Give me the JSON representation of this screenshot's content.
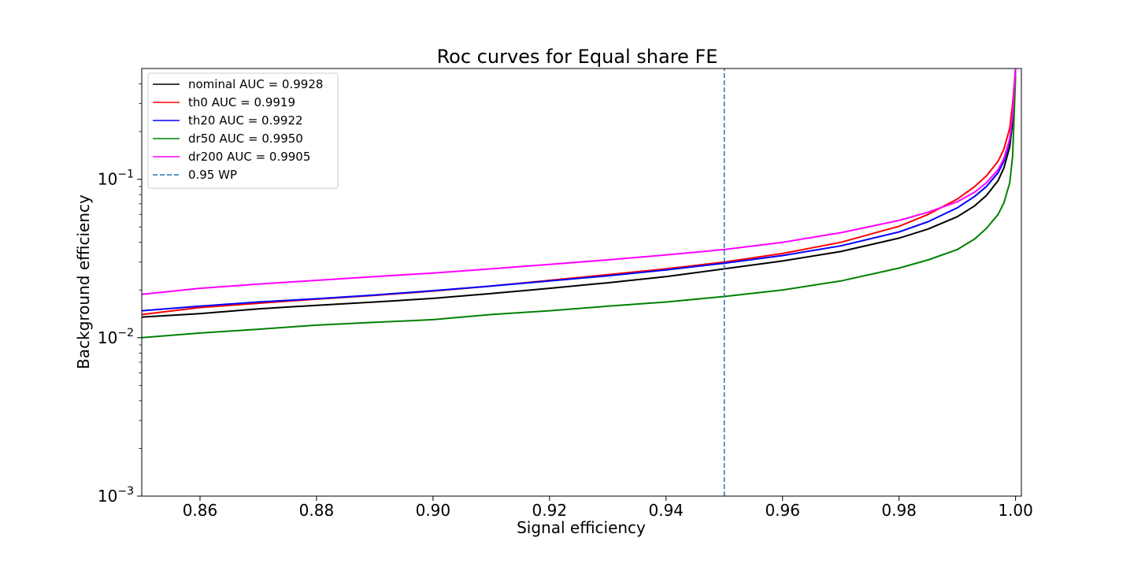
{
  "chart_data": {
    "type": "line",
    "title": "Roc curves for Equal share FE",
    "xlabel": "Signal efficiency",
    "ylabel": "Background efficiency",
    "xlim": [
      0.85,
      1.001
    ],
    "ylim": [
      0.001,
      0.5
    ],
    "yscale": "log",
    "grid": false,
    "legend_position": "top-left",
    "x_ticks": [
      {
        "value": 0.86,
        "label": "0.86"
      },
      {
        "value": 0.88,
        "label": "0.88"
      },
      {
        "value": 0.9,
        "label": "0.90"
      },
      {
        "value": 0.92,
        "label": "0.92"
      },
      {
        "value": 0.94,
        "label": "0.94"
      },
      {
        "value": 0.96,
        "label": "0.96"
      },
      {
        "value": 0.98,
        "label": "0.98"
      },
      {
        "value": 1.0,
        "label": "1.00"
      }
    ],
    "y_ticks": [
      {
        "value": 0.001,
        "base": "10",
        "exp": "−3"
      },
      {
        "value": 0.01,
        "base": "10",
        "exp": "−2"
      },
      {
        "value": 0.1,
        "base": "10",
        "exp": "−1"
      }
    ],
    "series": [
      {
        "name": "nominal AUC = 0.9928",
        "color": "#000000",
        "style": "solid",
        "x": [
          0.85,
          0.86,
          0.87,
          0.88,
          0.89,
          0.9,
          0.91,
          0.92,
          0.93,
          0.94,
          0.95,
          0.96,
          0.97,
          0.98,
          0.985,
          0.99,
          0.993,
          0.995,
          0.997,
          0.998,
          0.999,
          0.9995,
          1.0
        ],
        "y": [
          0.0135,
          0.0142,
          0.0152,
          0.016,
          0.0168,
          0.0177,
          0.019,
          0.0205,
          0.0222,
          0.0243,
          0.0272,
          0.0305,
          0.035,
          0.0425,
          0.0485,
          0.058,
          0.068,
          0.079,
          0.098,
          0.118,
          0.16,
          0.23,
          0.5
        ]
      },
      {
        "name": "th0 AUC = 0.9919",
        "color": "#ff0000",
        "style": "solid",
        "x": [
          0.85,
          0.86,
          0.87,
          0.88,
          0.89,
          0.9,
          0.91,
          0.92,
          0.93,
          0.94,
          0.95,
          0.96,
          0.97,
          0.98,
          0.985,
          0.99,
          0.993,
          0.995,
          0.997,
          0.998,
          0.999,
          0.9995,
          1.0
        ],
        "y": [
          0.014,
          0.0155,
          0.0165,
          0.0175,
          0.0185,
          0.0197,
          0.0212,
          0.023,
          0.025,
          0.0272,
          0.03,
          0.034,
          0.04,
          0.0505,
          0.06,
          0.075,
          0.09,
          0.105,
          0.13,
          0.155,
          0.21,
          0.3,
          0.5
        ]
      },
      {
        "name": "th20 AUC = 0.9922",
        "color": "#0000ff",
        "style": "solid",
        "x": [
          0.85,
          0.86,
          0.87,
          0.88,
          0.89,
          0.9,
          0.91,
          0.92,
          0.93,
          0.94,
          0.95,
          0.96,
          0.97,
          0.98,
          0.985,
          0.99,
          0.993,
          0.995,
          0.997,
          0.998,
          0.999,
          0.9995,
          1.0
        ],
        "y": [
          0.0148,
          0.0158,
          0.0168,
          0.0176,
          0.0186,
          0.0198,
          0.0212,
          0.0228,
          0.0246,
          0.0268,
          0.0295,
          0.033,
          0.038,
          0.0465,
          0.054,
          0.066,
          0.078,
          0.09,
          0.11,
          0.13,
          0.175,
          0.25,
          0.5
        ]
      },
      {
        "name": "dr50 AUC = 0.9950",
        "color": "#008000",
        "style": "solid",
        "x": [
          0.85,
          0.86,
          0.87,
          0.88,
          0.89,
          0.9,
          0.91,
          0.92,
          0.93,
          0.94,
          0.95,
          0.96,
          0.97,
          0.98,
          0.985,
          0.99,
          0.993,
          0.995,
          0.997,
          0.998,
          0.999,
          0.9995,
          1.0
        ],
        "y": [
          0.01,
          0.0107,
          0.0113,
          0.012,
          0.0125,
          0.013,
          0.014,
          0.0148,
          0.0158,
          0.0168,
          0.0182,
          0.02,
          0.0228,
          0.0275,
          0.031,
          0.036,
          0.042,
          0.049,
          0.06,
          0.071,
          0.095,
          0.14,
          0.45
        ]
      },
      {
        "name": "dr200 AUC = 0.9905",
        "color": "#ff00ff",
        "style": "solid",
        "x": [
          0.85,
          0.86,
          0.87,
          0.88,
          0.89,
          0.9,
          0.91,
          0.92,
          0.93,
          0.94,
          0.95,
          0.96,
          0.97,
          0.98,
          0.985,
          0.99,
          0.993,
          0.995,
          0.997,
          0.998,
          0.999,
          0.9995,
          1.0
        ],
        "y": [
          0.0188,
          0.0205,
          0.0218,
          0.023,
          0.0243,
          0.0256,
          0.0272,
          0.029,
          0.031,
          0.0333,
          0.036,
          0.04,
          0.046,
          0.055,
          0.062,
          0.072,
          0.083,
          0.095,
          0.115,
          0.135,
          0.18,
          0.26,
          0.5
        ]
      },
      {
        "name": "0.95 WP",
        "color": "#1f77b4",
        "style": "dashed",
        "x": [
          0.95,
          0.95
        ],
        "y": [
          0.001,
          0.5
        ]
      }
    ]
  }
}
